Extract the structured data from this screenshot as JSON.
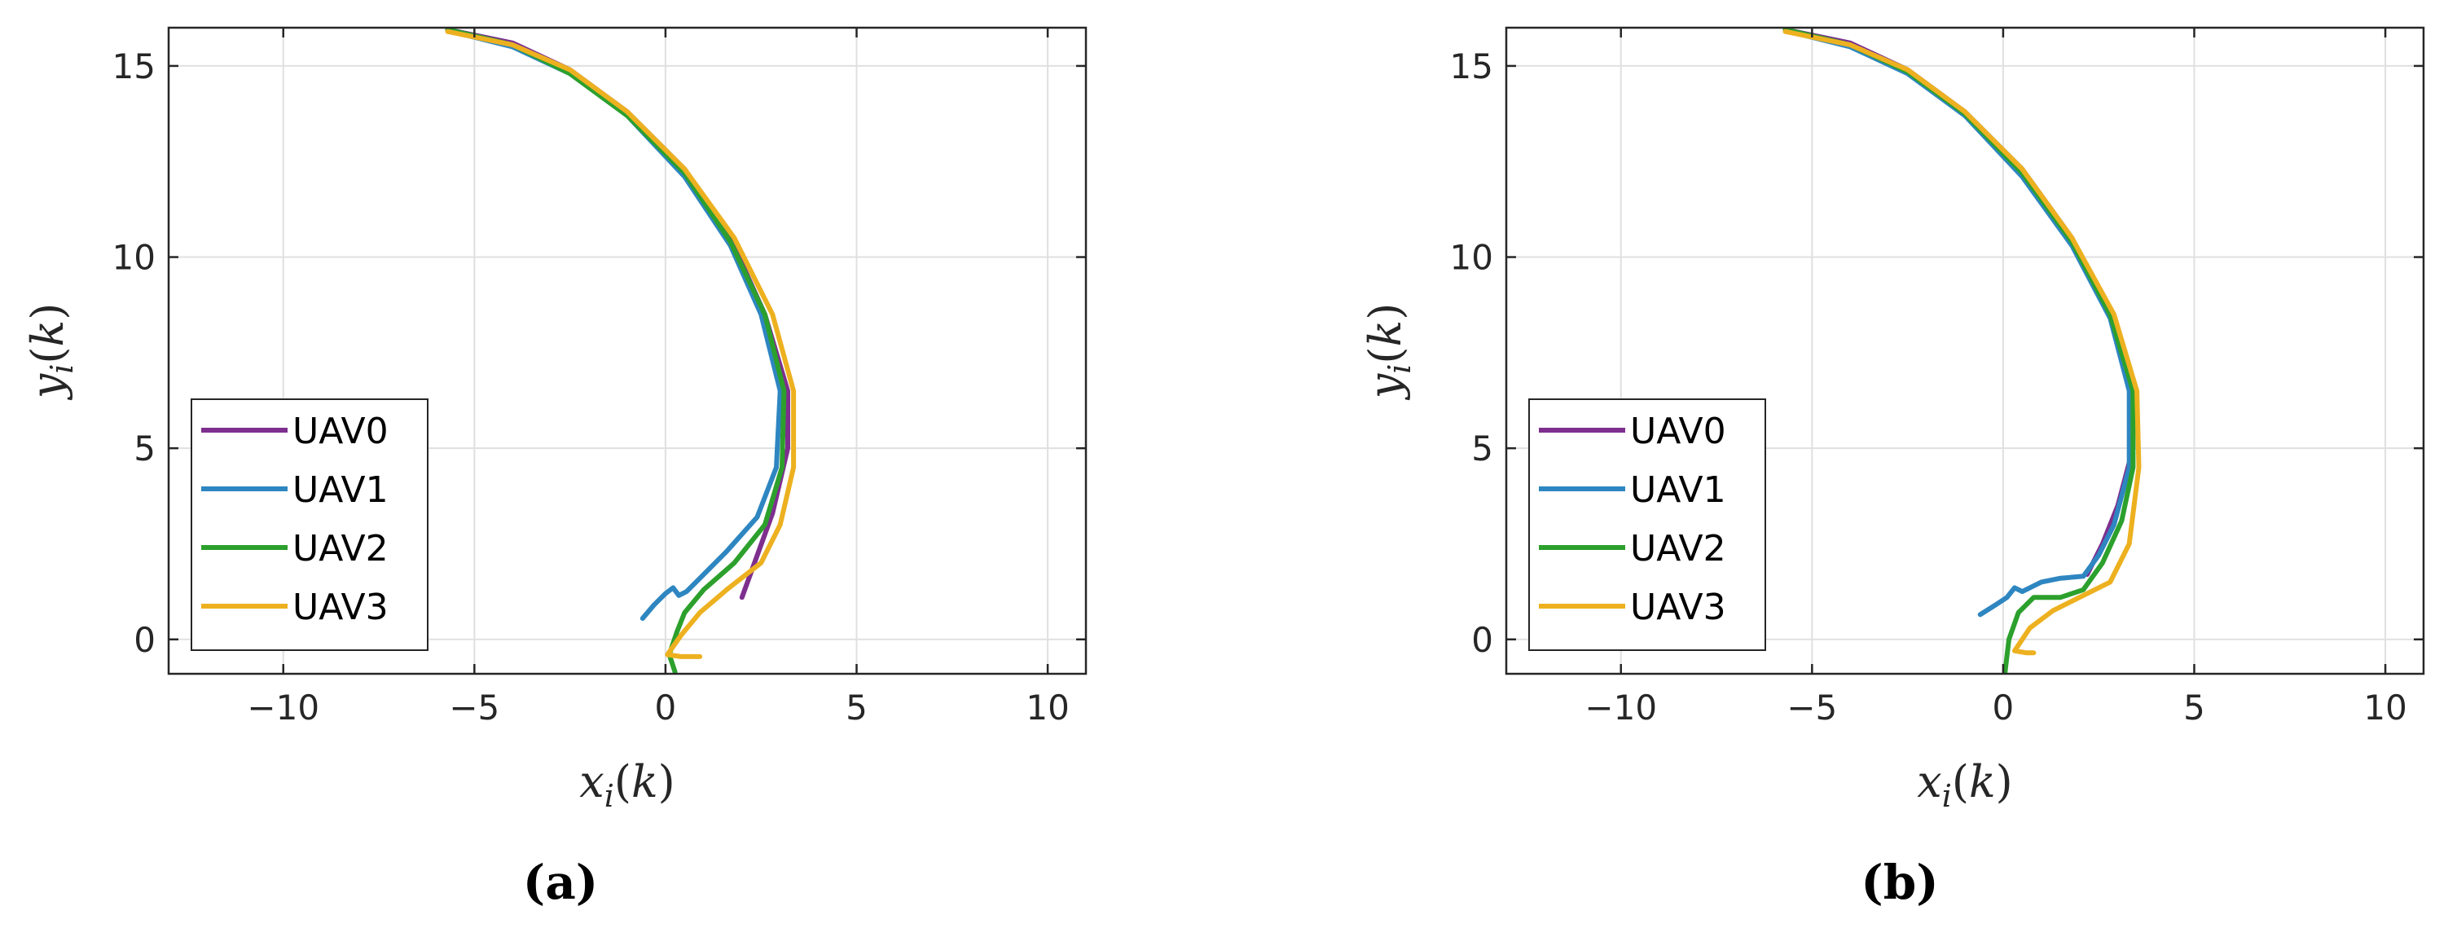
{
  "chart_data": [
    {
      "panel": "(a)",
      "type": "line",
      "xlabel": "x_i(k)",
      "ylabel": "y_i(k)",
      "xlim": [
        -13,
        11
      ],
      "ylim": [
        -0.9,
        16
      ],
      "xticks": [
        -10,
        -5,
        0,
        5,
        10
      ],
      "yticks": [
        0,
        5,
        10,
        15
      ],
      "grid": true,
      "legend": "bottom-left",
      "series": [
        {
          "name": "UAV0",
          "color": "#7E2F8E",
          "points": [
            [
              -5.7,
              15.95
            ],
            [
              -4.0,
              15.6
            ],
            [
              -2.5,
              14.9
            ],
            [
              -1.0,
              13.8
            ],
            [
              0.5,
              12.3
            ],
            [
              1.7,
              10.5
            ],
            [
              2.6,
              8.5
            ],
            [
              3.2,
              6.5
            ],
            [
              3.2,
              5.0
            ],
            [
              2.8,
              3.3
            ],
            [
              2.0,
              1.1
            ]
          ]
        },
        {
          "name": "UAV1",
          "color": "#2E86C1",
          "points": [
            [
              -5.6,
              15.9
            ],
            [
              -4.0,
              15.5
            ],
            [
              -2.5,
              14.8
            ],
            [
              -1.0,
              13.7
            ],
            [
              0.5,
              12.1
            ],
            [
              1.7,
              10.3
            ],
            [
              2.5,
              8.5
            ],
            [
              3.0,
              6.5
            ],
            [
              2.9,
              4.5
            ],
            [
              2.4,
              3.2
            ],
            [
              1.6,
              2.3
            ],
            [
              0.9,
              1.6
            ],
            [
              0.55,
              1.25
            ],
            [
              0.35,
              1.15
            ],
            [
              0.2,
              1.35
            ],
            [
              0.0,
              1.2
            ],
            [
              -0.3,
              0.9
            ],
            [
              -0.6,
              0.55
            ]
          ]
        },
        {
          "name": "UAV2",
          "color": "#2CA02C",
          "points": [
            [
              -5.7,
              15.95
            ],
            [
              -4.0,
              15.55
            ],
            [
              -2.5,
              14.8
            ],
            [
              -1.0,
              13.7
            ],
            [
              0.5,
              12.2
            ],
            [
              1.7,
              10.4
            ],
            [
              2.6,
              8.5
            ],
            [
              3.1,
              6.5
            ],
            [
              3.05,
              4.5
            ],
            [
              2.6,
              3.0
            ],
            [
              1.8,
              2.0
            ],
            [
              1.0,
              1.3
            ],
            [
              0.5,
              0.7
            ],
            [
              0.3,
              0.2
            ],
            [
              0.1,
              -0.4
            ],
            [
              0.25,
              -0.85
            ]
          ]
        },
        {
          "name": "UAV3",
          "color": "#EDB120",
          "points": [
            [
              -5.7,
              15.9
            ],
            [
              -4.0,
              15.55
            ],
            [
              -2.5,
              14.9
            ],
            [
              -1.0,
              13.8
            ],
            [
              0.5,
              12.3
            ],
            [
              1.8,
              10.5
            ],
            [
              2.8,
              8.5
            ],
            [
              3.35,
              6.5
            ],
            [
              3.35,
              4.5
            ],
            [
              3.0,
              3.0
            ],
            [
              2.5,
              2.0
            ],
            [
              1.6,
              1.3
            ],
            [
              0.9,
              0.7
            ],
            [
              0.4,
              0.1
            ],
            [
              0.05,
              -0.4
            ],
            [
              0.4,
              -0.45
            ],
            [
              0.9,
              -0.45
            ]
          ]
        }
      ]
    },
    {
      "panel": "(b)",
      "type": "line",
      "xlabel": "x_i(k)",
      "ylabel": "y_i(k)",
      "xlim": [
        -13,
        11
      ],
      "ylim": [
        -0.9,
        16
      ],
      "xticks": [
        -10,
        -5,
        0,
        5,
        10
      ],
      "yticks": [
        0,
        5,
        10,
        15
      ],
      "grid": true,
      "legend": "bottom-left",
      "series": [
        {
          "name": "UAV0",
          "color": "#7E2F8E",
          "points": [
            [
              -5.7,
              15.95
            ],
            [
              -4.0,
              15.6
            ],
            [
              -2.5,
              14.9
            ],
            [
              -1.0,
              13.8
            ],
            [
              0.5,
              12.3
            ],
            [
              1.8,
              10.5
            ],
            [
              2.8,
              8.5
            ],
            [
              3.35,
              6.5
            ],
            [
              3.4,
              5.0
            ],
            [
              3.0,
              3.5
            ],
            [
              2.6,
              2.5
            ],
            [
              2.2,
              1.7
            ]
          ]
        },
        {
          "name": "UAV1",
          "color": "#2E86C1",
          "points": [
            [
              -5.6,
              15.9
            ],
            [
              -4.0,
              15.5
            ],
            [
              -2.5,
              14.8
            ],
            [
              -1.0,
              13.7
            ],
            [
              0.5,
              12.1
            ],
            [
              1.8,
              10.3
            ],
            [
              2.8,
              8.4
            ],
            [
              3.3,
              6.5
            ],
            [
              3.3,
              4.5
            ],
            [
              2.9,
              3.0
            ],
            [
              2.5,
              2.2
            ],
            [
              2.1,
              1.65
            ],
            [
              1.5,
              1.6
            ],
            [
              1.0,
              1.5
            ],
            [
              0.5,
              1.25
            ],
            [
              0.3,
              1.35
            ],
            [
              0.1,
              1.1
            ],
            [
              -0.2,
              0.9
            ],
            [
              -0.6,
              0.65
            ]
          ]
        },
        {
          "name": "UAV2",
          "color": "#2CA02C",
          "points": [
            [
              -5.7,
              15.95
            ],
            [
              -4.0,
              15.55
            ],
            [
              -2.5,
              14.85
            ],
            [
              -1.0,
              13.75
            ],
            [
              0.5,
              12.2
            ],
            [
              1.8,
              10.4
            ],
            [
              2.8,
              8.5
            ],
            [
              3.4,
              6.5
            ],
            [
              3.4,
              4.5
            ],
            [
              3.1,
              3.1
            ],
            [
              2.6,
              2.0
            ],
            [
              2.1,
              1.3
            ],
            [
              1.5,
              1.1
            ],
            [
              0.8,
              1.1
            ],
            [
              0.4,
              0.7
            ],
            [
              0.15,
              0.0
            ],
            [
              0.05,
              -0.85
            ]
          ]
        },
        {
          "name": "UAV3",
          "color": "#EDB120",
          "points": [
            [
              -5.7,
              15.9
            ],
            [
              -4.0,
              15.55
            ],
            [
              -2.5,
              14.9
            ],
            [
              -1.0,
              13.8
            ],
            [
              0.5,
              12.3
            ],
            [
              1.8,
              10.5
            ],
            [
              2.9,
              8.5
            ],
            [
              3.5,
              6.5
            ],
            [
              3.55,
              4.5
            ],
            [
              3.3,
              2.5
            ],
            [
              2.8,
              1.5
            ],
            [
              2.1,
              1.15
            ],
            [
              1.3,
              0.75
            ],
            [
              0.7,
              0.3
            ],
            [
              0.3,
              -0.3
            ],
            [
              0.6,
              -0.35
            ],
            [
              0.8,
              -0.35
            ]
          ]
        }
      ]
    }
  ],
  "panel_labels": [
    "(a)",
    "(b)"
  ],
  "tick_labels_x": [
    "−10",
    "−5",
    "0",
    "5",
    "10"
  ],
  "tick_labels_y": [
    "0",
    "5",
    "10",
    "15"
  ],
  "legend_labels": [
    "UAV0",
    "UAV1",
    "UAV2",
    "UAV3"
  ]
}
